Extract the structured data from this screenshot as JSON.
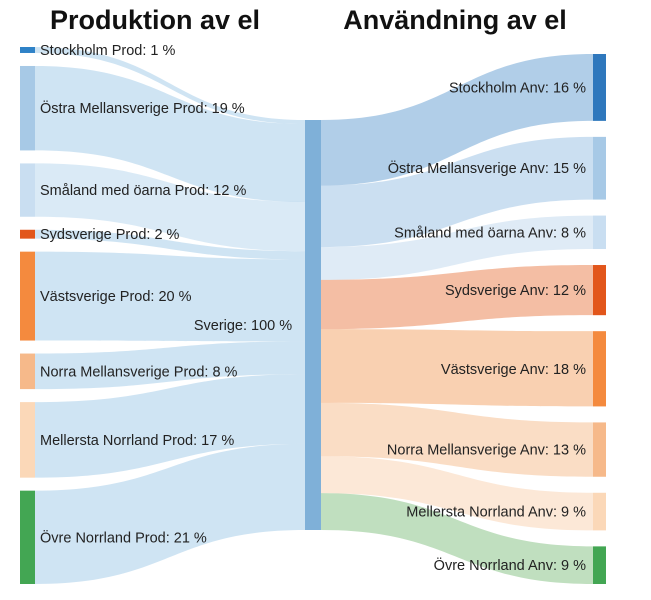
{
  "titles": {
    "production": "Produktion av el",
    "usage": "Användning av el"
  },
  "center": {
    "label": "Sverige: 100 %",
    "value": 100,
    "color": "#7fb0d8"
  },
  "chart_data": {
    "type": "sankey",
    "unit": "%",
    "sources": [
      {
        "name": "Stockholm Prod",
        "label": "Stockholm Prod: 1 %",
        "value": 1,
        "color": "#2f82c7",
        "flow_color": "#c7dff1"
      },
      {
        "name": "Östra Mellansverige Prod",
        "label": "Östra Mellansverige Prod: 19 %",
        "value": 19,
        "color": "#a7c9e6",
        "flow_color": "#c7dff1"
      },
      {
        "name": "Småland med öarna Prod",
        "label": "Småland med öarna Prod: 12 %",
        "value": 12,
        "color": "#c9def1",
        "flow_color": "#d4e6f4"
      },
      {
        "name": "Sydsverige Prod",
        "label": "Sydsverige Prod: 2 %",
        "value": 2,
        "color": "#e2561b",
        "flow_color": "#c7dff1"
      },
      {
        "name": "Västsverige Prod",
        "label": "Västsverige Prod: 20 %",
        "value": 20,
        "color": "#f48a3e",
        "flow_color": "#c7dff1"
      },
      {
        "name": "Norra Mellansverige Prod",
        "label": "Norra Mellansverige Prod: 8 %",
        "value": 8,
        "color": "#f6b98a",
        "flow_color": "#c7dff1"
      },
      {
        "name": "Mellersta Norrland Prod",
        "label": "Mellersta Norrland Prod: 17 %",
        "value": 17,
        "color": "#fbd8b8",
        "flow_color": "#c7dff1"
      },
      {
        "name": "Övre Norrland Prod",
        "label": "Övre Norrland Prod: 21 %",
        "value": 21,
        "color": "#43a653",
        "flow_color": "#c7dff1"
      }
    ],
    "targets": [
      {
        "name": "Stockholm Anv",
        "label": "Stockholm Anv: 16 %",
        "value": 16,
        "color": "#2f78bd",
        "flow_color": "#a9c9e5"
      },
      {
        "name": "Östra Mellansverige Anv",
        "label": "Östra Mellansverige Anv: 15 %",
        "value": 15,
        "color": "#a7c9e6",
        "flow_color": "#c5dcef"
      },
      {
        "name": "Småland med öarna Anv",
        "label": "Småland med öarna Anv: 8 %",
        "value": 8,
        "color": "#c9def1",
        "flow_color": "#dce9f5"
      },
      {
        "name": "Sydsverige Anv",
        "label": "Sydsverige Anv: 12 %",
        "value": 12,
        "color": "#e2561b",
        "flow_color": "#f3b79a"
      },
      {
        "name": "Västsverige Anv",
        "label": "Västsverige Anv: 18 %",
        "value": 18,
        "color": "#f48a3e",
        "flow_color": "#f8cba8"
      },
      {
        "name": "Norra Mellansverige Anv",
        "label": "Norra Mellansverige Anv: 13 %",
        "value": 13,
        "color": "#f6b98a",
        "flow_color": "#fad9bf"
      },
      {
        "name": "Mellersta Norrland Anv",
        "label": "Mellersta Norrland Anv: 9 %",
        "value": 9,
        "color": "#fbd8b8",
        "flow_color": "#fce6d3"
      },
      {
        "name": "Övre Norrland Anv",
        "label": "Övre Norrland Anv: 9 %",
        "value": 9,
        "color": "#43a653",
        "flow_color": "#b9dbb8"
      }
    ]
  }
}
